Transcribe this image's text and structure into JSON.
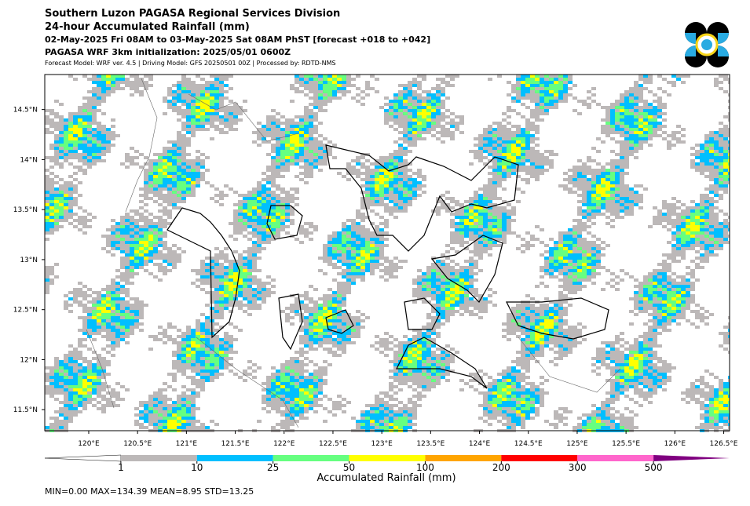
{
  "header": {
    "title": "Southern Luzon PAGASA Regional Services Division",
    "subtitle": "24-hour Accumulated Rainfall (mm)",
    "period": "02-May-2025 Fri 08AM to 03-May-2025 Sat 08AM PhST [forecast +018 to +042]",
    "init": "PAGASA WRF 3km initialization: 2025/05/01 0600Z",
    "model_info": "Forecast Model: WRF ver. 4.5 | Driving Model: GFS 20250501 00Z | Processed by: RDTD-NMS"
  },
  "map": {
    "xlim": [
      119.55,
      126.56
    ],
    "ylim": [
      11.29,
      14.85
    ],
    "xticks": [
      {
        "value": 120,
        "label": "120°E"
      },
      {
        "value": 120.5,
        "label": "120.5°E"
      },
      {
        "value": 121,
        "label": "121°E"
      },
      {
        "value": 121.5,
        "label": "121.5°E"
      },
      {
        "value": 122,
        "label": "122°E"
      },
      {
        "value": 122.5,
        "label": "122.5°E"
      },
      {
        "value": 123,
        "label": "123°E"
      },
      {
        "value": 123.5,
        "label": "123.5°E"
      },
      {
        "value": 124,
        "label": "124°E"
      },
      {
        "value": 124.5,
        "label": "124.5°E"
      },
      {
        "value": 125,
        "label": "125°E"
      },
      {
        "value": 125.5,
        "label": "125.5°E"
      },
      {
        "value": 126,
        "label": "126°E"
      },
      {
        "value": 126.5,
        "label": "126.5°E"
      }
    ],
    "yticks": [
      {
        "value": 11.5,
        "label": "11.5°N"
      },
      {
        "value": 12,
        "label": "12°N"
      },
      {
        "value": 12.5,
        "label": "12.5°N"
      },
      {
        "value": 13,
        "label": "13°N"
      },
      {
        "value": 13.5,
        "label": "13.5°N"
      },
      {
        "value": 14,
        "label": "14°N"
      },
      {
        "value": 14.5,
        "label": "14.5°N"
      }
    ]
  },
  "colorbar": {
    "label": "Accumulated Rainfall (mm)",
    "bounds": [
      1,
      10,
      25,
      50,
      100,
      200,
      300,
      500
    ],
    "colors": [
      "#ffffff",
      "#bcb8b8",
      "#00bfff",
      "#66ff80",
      "#ffff00",
      "#ffa500",
      "#ff0000",
      "#ff66cc",
      "#800080"
    ]
  },
  "stats": "MIN=0.00   MAX=134.39   MEAN=8.95   STD=13.25"
}
